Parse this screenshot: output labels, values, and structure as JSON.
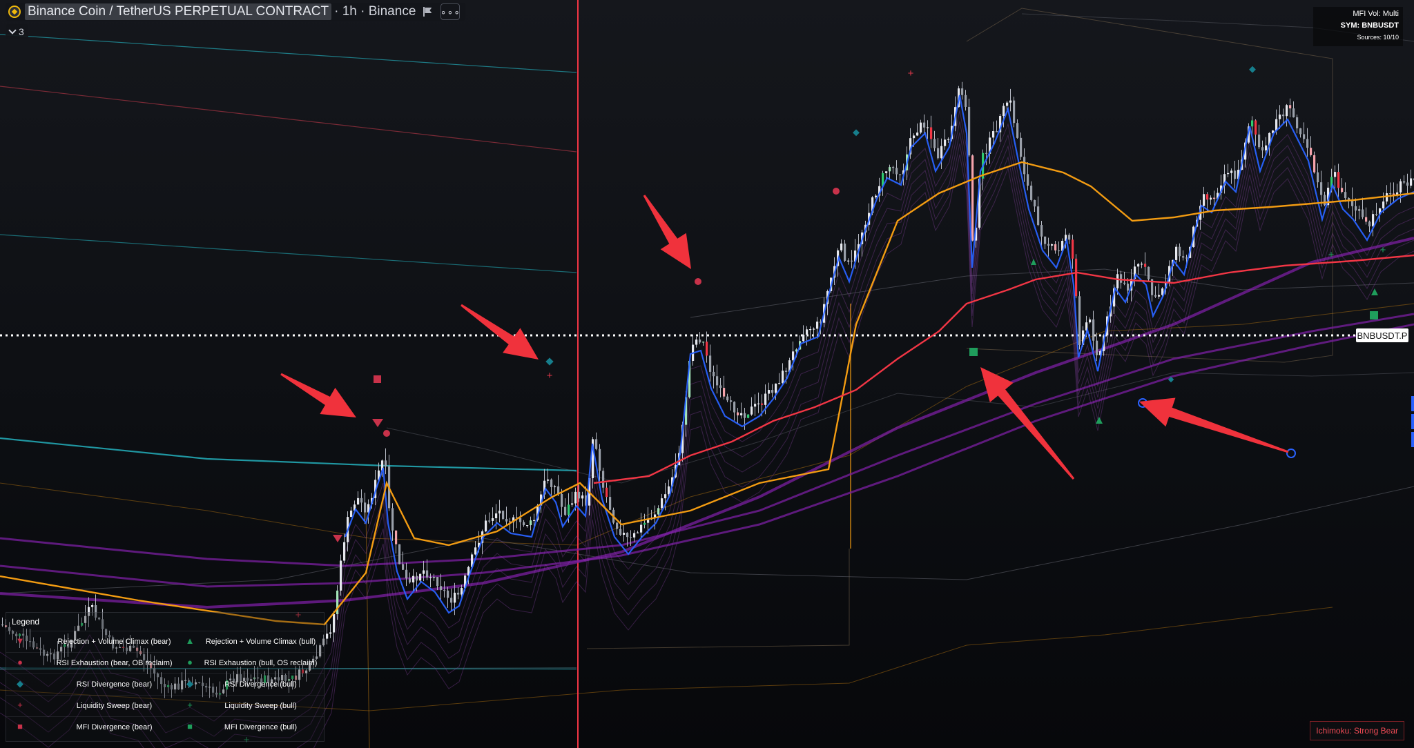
{
  "header": {
    "symbol_name": "Binance Coin / TetherUS PERPETUAL CONTRACT",
    "meta": "· 1h · Binance",
    "more_label": "∘∘∘",
    "indicator_count": "3"
  },
  "info_panel": {
    "title": "MFI Vol: Multi",
    "sym": "SYM: BNBUSDT",
    "sources": "Sources: 10/10"
  },
  "price_label": "BNBUSDT.P",
  "ichimoku_status": "Ichimoku: Strong Bear",
  "legend": {
    "title": "Legend",
    "rows": [
      {
        "bear": "Rejection + Volume Climax (bear)",
        "bull": "Rejection + Volume Climax (bull)",
        "bear_symbol": "▼",
        "bull_symbol": "▲"
      },
      {
        "bear": "RSI Exhaustion (bear, OB reclaim)",
        "bull": "RSI Exhaustion (bull, OS reclaim)",
        "bear_symbol": "●",
        "bull_symbol": "●"
      },
      {
        "bear": "RSI Divergence (bear)",
        "bull": "RSI Divergence (bull)",
        "bear_symbol": "◆",
        "bull_symbol": "◆"
      },
      {
        "bear": "Liquidity Sweep (bear)",
        "bull": "Liquidity Sweep (bull)",
        "bear_symbol": "+",
        "bull_symbol": "+"
      },
      {
        "bear": "MFI Divergence (bear)",
        "bull": "MFI Divergence (bull)",
        "bear_symbol": "■",
        "bull_symbol": "■"
      }
    ]
  },
  "colors": {
    "bear": "#c8324a",
    "bull": "#1f9d5c",
    "diamond": "#167e8c",
    "arrow": "#f0323c",
    "ema_orange": "#f39c12",
    "ema_red": "#f23645",
    "ema_purple": "#7b1fa2",
    "ema_blue": "#2962ff",
    "teal": "#22a6b3"
  }
}
